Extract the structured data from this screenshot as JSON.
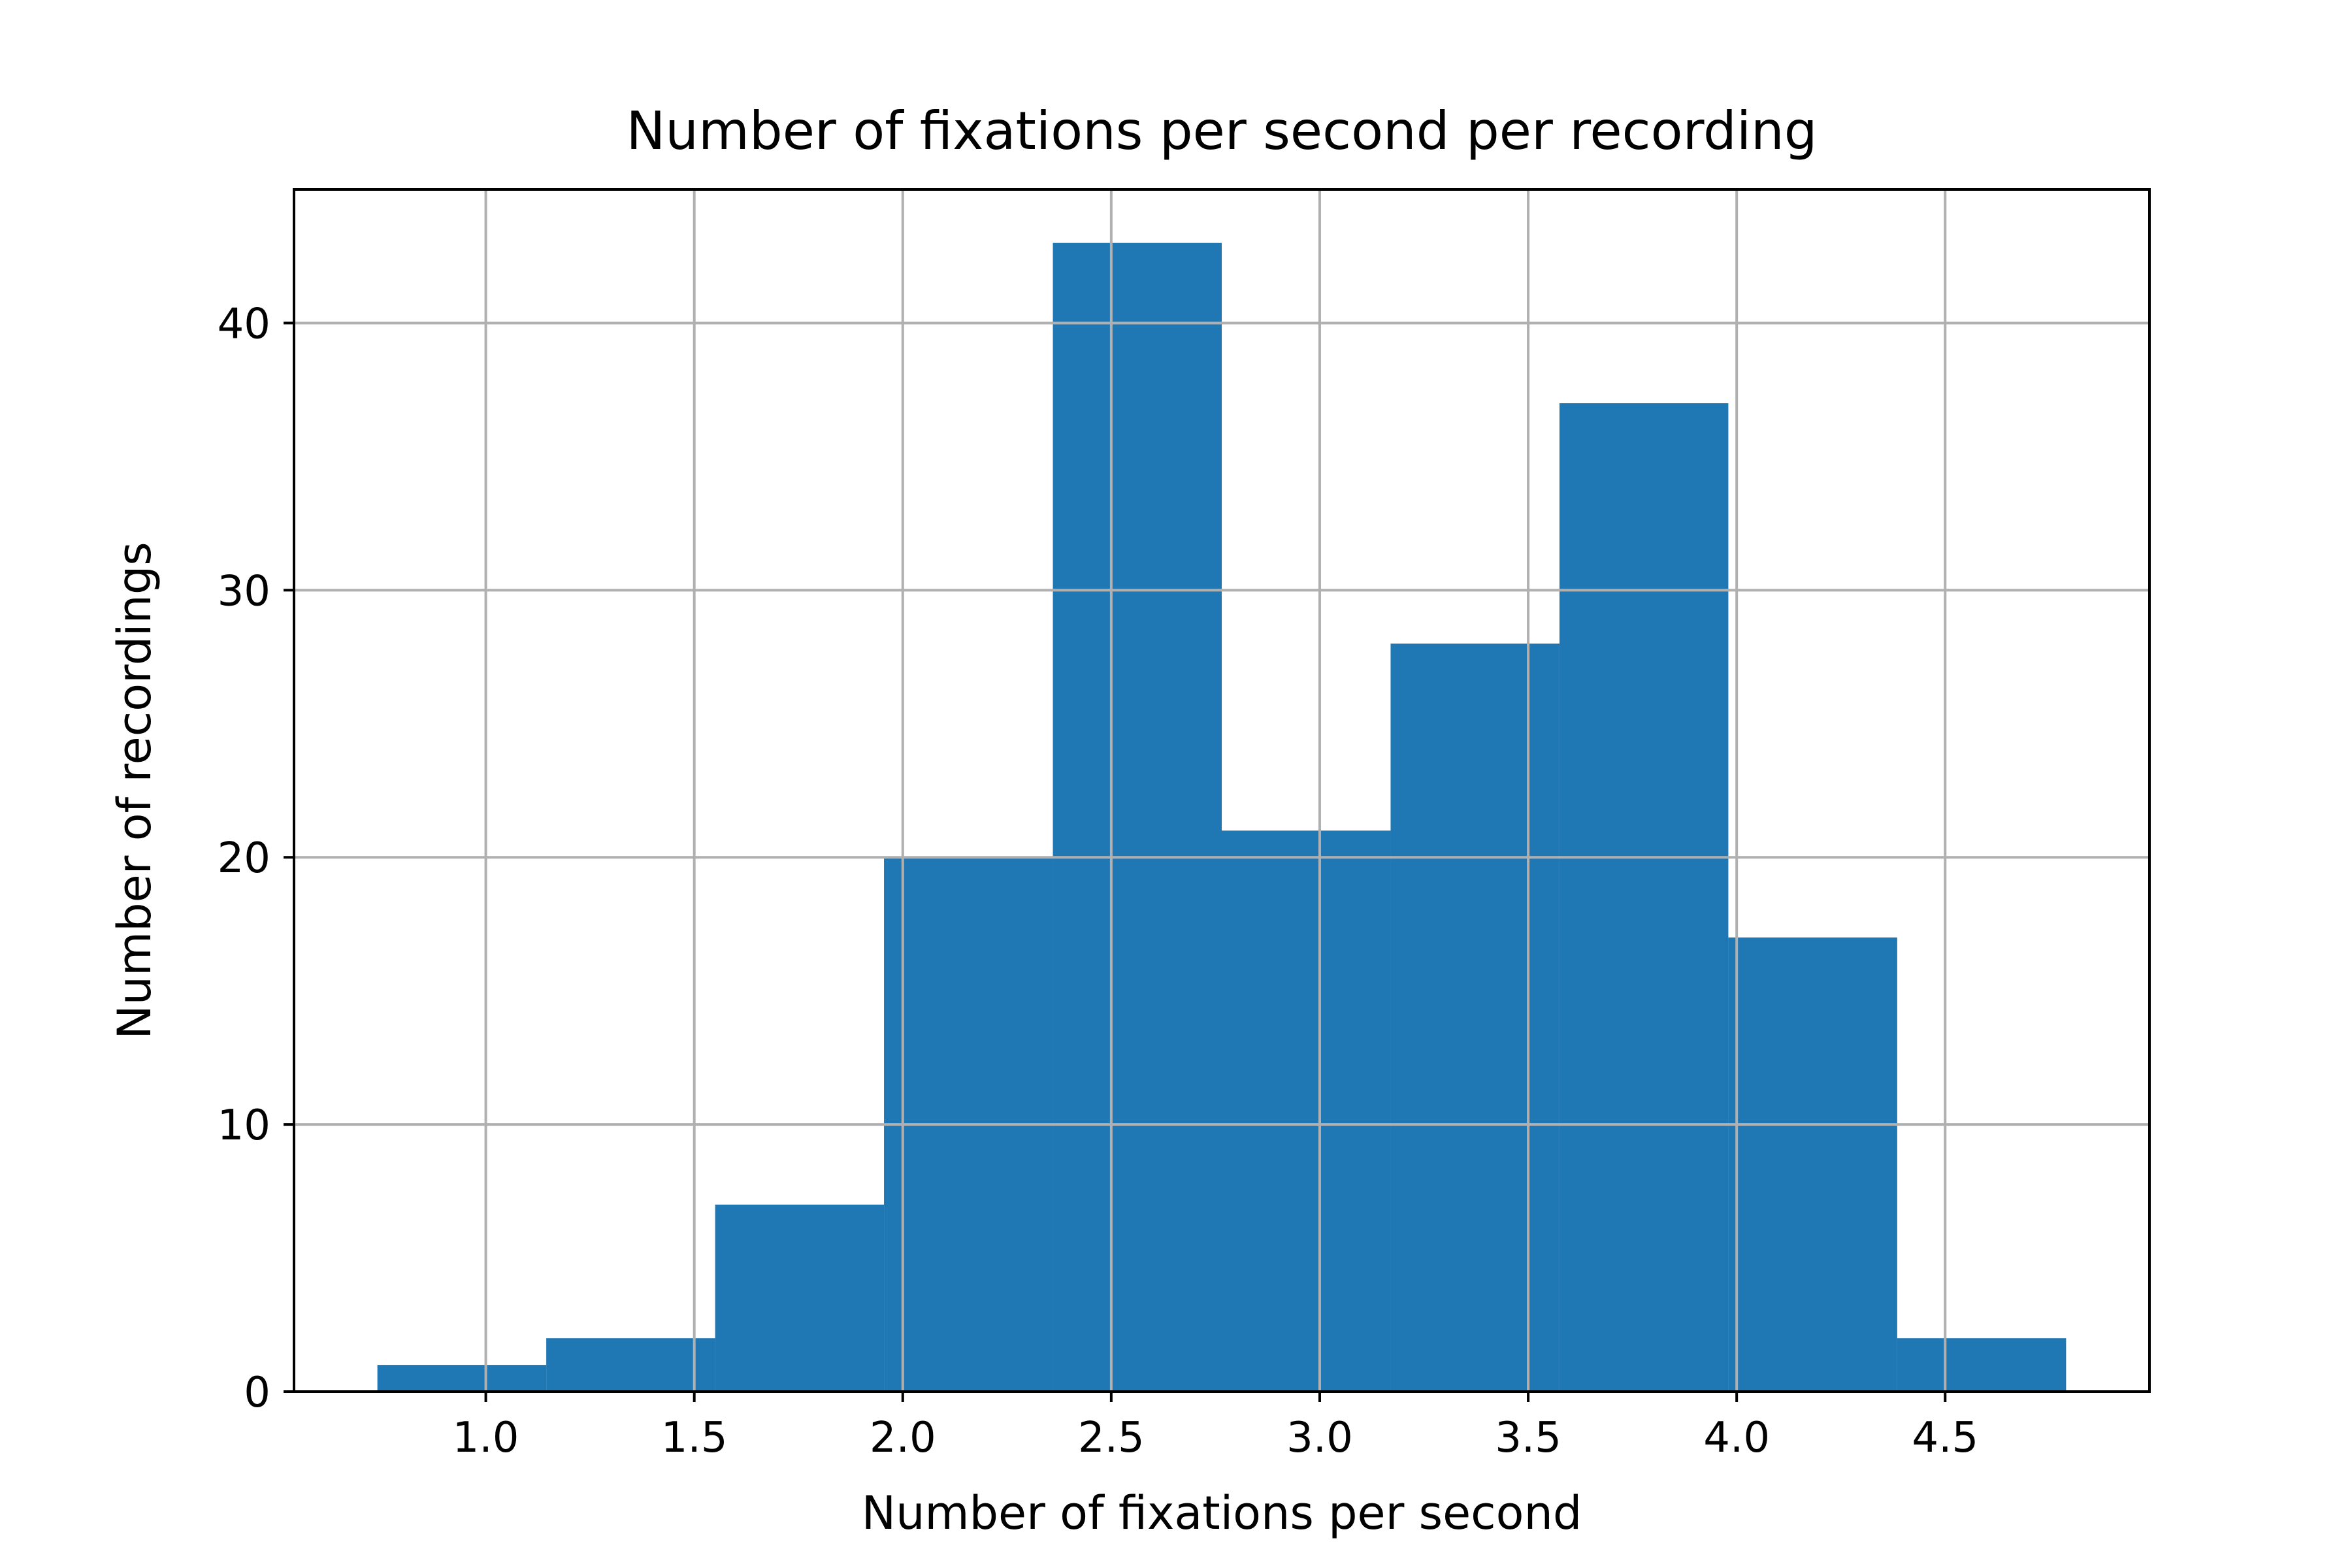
{
  "chart_data": {
    "type": "bar",
    "title": "Number of fixations per second per recording",
    "xlabel": "Number of fixations per second",
    "ylabel": "Number of recordings",
    "xlim": [
      0.54,
      4.99
    ],
    "ylim": [
      0,
      45
    ],
    "grid": true,
    "bar_color": "#1f77b4",
    "grid_color": "#b0b0b0",
    "x_ticks": [
      "1.0",
      "1.5",
      "2.0",
      "2.5",
      "3.0",
      "3.5",
      "4.0",
      "4.5"
    ],
    "y_ticks": [
      "0",
      "10",
      "20",
      "30",
      "40"
    ],
    "bins": [
      {
        "x0": 0.74,
        "x1": 1.145,
        "value": 1
      },
      {
        "x0": 1.145,
        "x1": 1.55,
        "value": 2
      },
      {
        "x0": 1.55,
        "x1": 1.955,
        "value": 7
      },
      {
        "x0": 1.955,
        "x1": 2.36,
        "value": 20
      },
      {
        "x0": 2.36,
        "x1": 2.765,
        "value": 43
      },
      {
        "x0": 2.765,
        "x1": 3.17,
        "value": 21
      },
      {
        "x0": 3.17,
        "x1": 3.575,
        "value": 28
      },
      {
        "x0": 3.575,
        "x1": 3.98,
        "value": 37
      },
      {
        "x0": 3.98,
        "x1": 4.385,
        "value": 17
      },
      {
        "x0": 4.385,
        "x1": 4.79,
        "value": 2
      }
    ]
  }
}
